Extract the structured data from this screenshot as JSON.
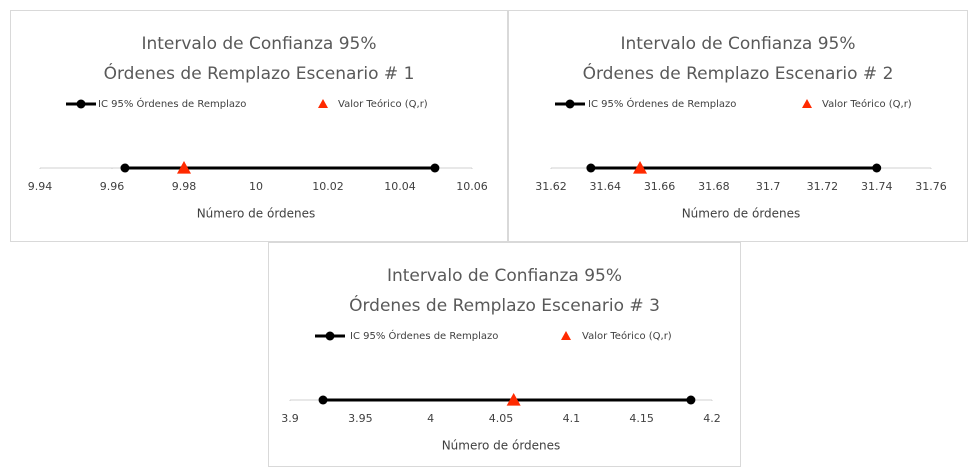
{
  "chart_data": [
    {
      "type": "interval",
      "title": [
        "Intervalo de Confianza 95%",
        "Órdenes de Remplazo  Escenario # 1"
      ],
      "series": [
        {
          "name": "IC 95% Órdenes de Remplazo",
          "color": "#000000",
          "values": [
            9.9636,
            10.0497
          ]
        },
        {
          "name": "Valor Teórico (Q,r)",
          "color": "#ff2a00",
          "values": [
            9.98
          ]
        }
      ],
      "xlabel": "Número de órdenes",
      "xlim": [
        9.94,
        10.06
      ],
      "xticks": [
        9.94,
        9.96,
        9.98,
        10,
        10.02,
        10.04,
        10.06
      ]
    },
    {
      "type": "interval",
      "title": [
        "Intervalo de Confianza 95%",
        "Órdenes de Remplazo Escenario # 2"
      ],
      "series": [
        {
          "name": "IC 95% Órdenes de Remplazo",
          "color": "#000000",
          "values": [
            31.6347,
            31.74
          ]
        },
        {
          "name": "Valor Teórico (Q,r)",
          "color": "#ff2a00",
          "values": [
            31.6528
          ]
        }
      ],
      "xlabel": "Número de órdenes",
      "xlim": [
        31.62,
        31.76
      ],
      "xticks": [
        31.62,
        31.64,
        31.66,
        31.68,
        31.7,
        31.72,
        31.74,
        31.76
      ]
    },
    {
      "type": "interval",
      "title": [
        "Intervalo de Confianza 95%",
        "Órdenes de Remplazo Escenario # 3"
      ],
      "series": [
        {
          "name": "IC 95% Órdenes de Remplazo",
          "color": "#000000",
          "values": [
            3.9235,
            4.185
          ]
        },
        {
          "name": "Valor Teórico (Q,r)",
          "color": "#ff2a00",
          "values": [
            4.059
          ]
        }
      ],
      "xlabel": "Número de órdenes",
      "xlim": [
        3.9,
        4.2
      ],
      "xticks": [
        3.9,
        3.95,
        4,
        4.05,
        4.1,
        4.15,
        4.2
      ]
    }
  ]
}
